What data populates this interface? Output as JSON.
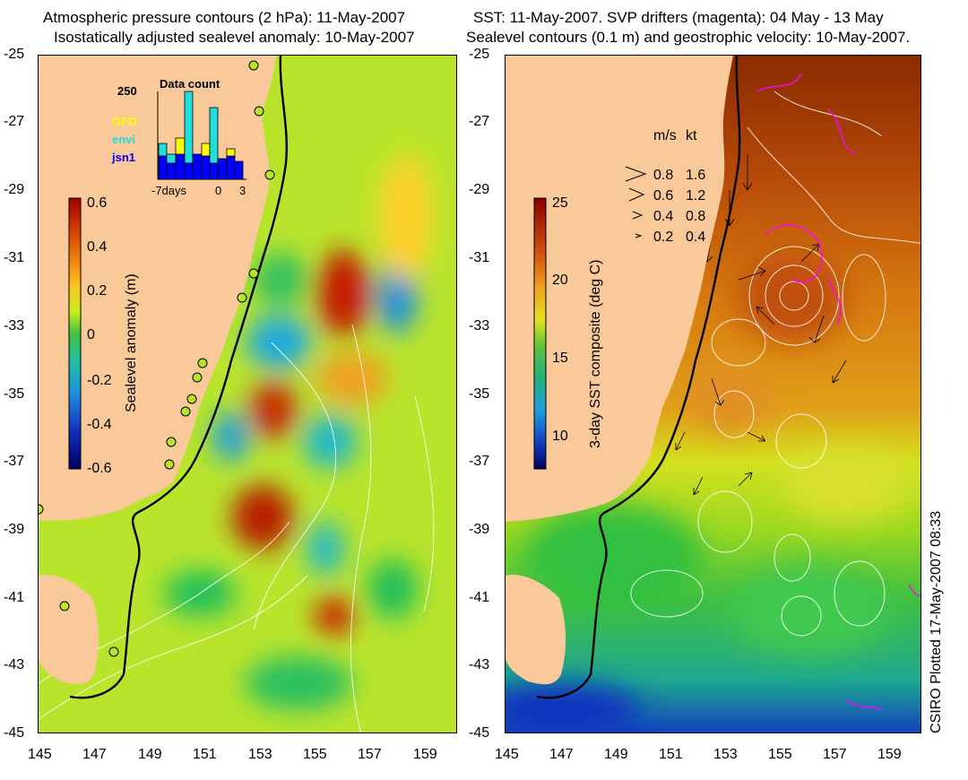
{
  "left": {
    "title_line1": "Atmospheric pressure contours (2 hPa): 11-May-2007",
    "title_line2": "Isostatically adjusted sealevel anomaly: 10-May-2007",
    "lat_ticks": [
      "-25",
      "-27",
      "-29",
      "-31",
      "-33",
      "-35",
      "-37",
      "-39",
      "-41",
      "-43",
      "-45"
    ],
    "lon_ticks": [
      "145",
      "147",
      "149",
      "151",
      "153",
      "155",
      "157",
      "159"
    ],
    "colorbar": {
      "label": "Sealevel anomaly (m)",
      "ticks": [
        "0.6",
        "0.4",
        "0.2",
        "0",
        "-0.2",
        "-0.4",
        "-0.6"
      ]
    },
    "inset": {
      "title": "Data count",
      "max_label": "250",
      "legend": [
        {
          "label": "GFO",
          "color": "#ffff00"
        },
        {
          "label": "envi",
          "color": "#22dddd"
        },
        {
          "label": "jsn1",
          "color": "#0000ff"
        }
      ],
      "x_labels": [
        "-7days",
        "0",
        "3"
      ]
    }
  },
  "right": {
    "title_line1": "SST: 11-May-2007. SVP drifters (magenta): 04 May - 13 May",
    "title_line2": "Sealevel contours (0.1 m) and geostrophic velocity: 10-May-2007.",
    "lat_ticks": [
      "-25",
      "-27",
      "-29",
      "-31",
      "-33",
      "-35",
      "-37",
      "-39",
      "-41",
      "-43",
      "-45"
    ],
    "lon_ticks": [
      "145",
      "147",
      "149",
      "151",
      "153",
      "155",
      "157",
      "159"
    ],
    "colorbar": {
      "label": "3-day SST composite (deg C)",
      "ticks": [
        "25",
        "20",
        "15",
        "10"
      ]
    },
    "speed_legend": {
      "header_ms": "m/s",
      "header_kt": "kt",
      "rows": [
        {
          "ms": "0.8",
          "kt": "1.6"
        },
        {
          "ms": "0.6",
          "kt": "1.2"
        },
        {
          "ms": "0.4",
          "kt": "0.8"
        },
        {
          "ms": "0.2",
          "kt": "0.4"
        }
      ]
    }
  },
  "credit": "CSIRO Plotted 17-May-2007 08:33",
  "colors": {
    "land": "#f9c99a",
    "ocean_base": "#b6e62a",
    "drifter": "#ff00ff"
  }
}
